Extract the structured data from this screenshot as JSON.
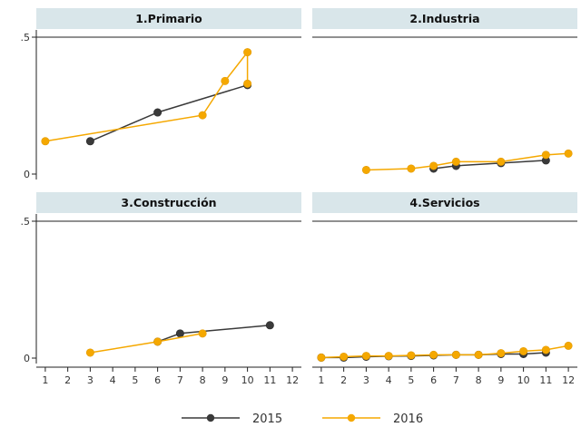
{
  "chart_data": {
    "type": "line",
    "layout": "2x2 small multiples",
    "x_ticks": [
      1,
      2,
      3,
      4,
      5,
      6,
      7,
      8,
      9,
      10,
      11,
      12
    ],
    "y_ticks": [
      0,
      0.5
    ],
    "y_tick_labels": [
      "0",
      ".5"
    ],
    "ylim": [
      0,
      0.5
    ],
    "xlim": [
      0.6,
      12.4
    ],
    "grid": "horizontal line at .5",
    "legend_placement": "bottom-center",
    "colors": {
      "2015": "#3a3a3a",
      "2016": "#f5a800",
      "strip_bg": "#d9e6ea"
    },
    "panels": [
      {
        "title": "1.Primario",
        "series": [
          {
            "name": "2015",
            "x": [
              3,
              6,
              10
            ],
            "y": [
              0.12,
              0.225,
              0.325
            ]
          },
          {
            "name": "2016",
            "x": [
              1,
              8,
              9,
              10,
              10
            ],
            "y": [
              0.12,
              0.215,
              0.34,
              0.445,
              0.33
            ]
          }
        ]
      },
      {
        "title": "2.Industria",
        "series": [
          {
            "name": "2015",
            "x": [
              6,
              7,
              9,
              11
            ],
            "y": [
              0.02,
              0.03,
              0.04,
              0.05
            ]
          },
          {
            "name": "2016",
            "x": [
              3,
              5,
              6,
              7,
              9,
              11,
              12
            ],
            "y": [
              0.015,
              0.02,
              0.03,
              0.045,
              0.045,
              0.07,
              0.075
            ]
          }
        ]
      },
      {
        "title": "3.Construcción",
        "series": [
          {
            "name": "2015",
            "x": [
              6,
              7,
              11
            ],
            "y": [
              0.06,
              0.09,
              0.12
            ]
          },
          {
            "name": "2016",
            "x": [
              3,
              6,
              8
            ],
            "y": [
              0.02,
              0.06,
              0.09
            ]
          }
        ]
      },
      {
        "title": "4.Servicios",
        "series": [
          {
            "name": "2015",
            "x": [
              1,
              2,
              3,
              4,
              5,
              6,
              7,
              8,
              9,
              10,
              11
            ],
            "y": [
              0.002,
              0.002,
              0.005,
              0.007,
              0.008,
              0.01,
              0.012,
              0.012,
              0.015,
              0.015,
              0.02
            ]
          },
          {
            "name": "2016",
            "x": [
              1,
              2,
              3,
              4,
              5,
              6,
              7,
              8,
              9,
              10,
              11,
              12
            ],
            "y": [
              0.002,
              0.005,
              0.008,
              0.008,
              0.01,
              0.012,
              0.012,
              0.012,
              0.018,
              0.025,
              0.03,
              0.045
            ]
          }
        ]
      }
    ],
    "legend": [
      "2015",
      "2016"
    ]
  }
}
